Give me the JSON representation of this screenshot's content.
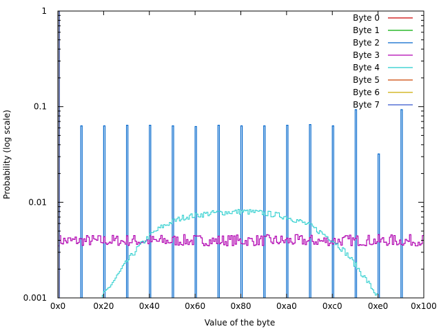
{
  "chart_data": {
    "type": "line",
    "title": "",
    "xlabel": "Value of the byte",
    "ylabel": "Probability (log scale)",
    "xlim": [
      0,
      256
    ],
    "ylim": [
      0.001,
      1
    ],
    "y_scale": "log",
    "grid": false,
    "legend_position": "top-right",
    "x_ticks": [
      {
        "value": 0,
        "label": "0x0"
      },
      {
        "value": 32,
        "label": "0x20"
      },
      {
        "value": 64,
        "label": "0x40"
      },
      {
        "value": 96,
        "label": "0x60"
      },
      {
        "value": 128,
        "label": "0x80"
      },
      {
        "value": 160,
        "label": "0xa0"
      },
      {
        "value": 192,
        "label": "0xc0"
      },
      {
        "value": 224,
        "label": "0xe0"
      },
      {
        "value": 256,
        "label": "0x100"
      }
    ],
    "y_ticks": [
      {
        "value": 0.001,
        "label": "0.001"
      },
      {
        "value": 0.01,
        "label": "0.01"
      },
      {
        "value": 0.1,
        "label": "0.1"
      },
      {
        "value": 1,
        "label": "1"
      }
    ],
    "series": [
      {
        "name": "Byte 0",
        "color": "#cc0000",
        "kind": "spikes",
        "points": [
          [
            0,
            1
          ]
        ]
      },
      {
        "name": "Byte 1",
        "color": "#00aa00",
        "kind": "spikes",
        "points": [
          [
            0,
            1
          ]
        ]
      },
      {
        "name": "Byte 2",
        "color": "#0066cc",
        "kind": "spikes",
        "points": [
          [
            0,
            1
          ],
          [
            16,
            0.063
          ],
          [
            32,
            0.063
          ],
          [
            48,
            0.064
          ],
          [
            64,
            0.064
          ],
          [
            80,
            0.063
          ],
          [
            96,
            0.062
          ],
          [
            112,
            0.064
          ],
          [
            128,
            0.063
          ],
          [
            144,
            0.063
          ],
          [
            160,
            0.064
          ],
          [
            176,
            0.065
          ],
          [
            192,
            0.063
          ],
          [
            208,
            0.093
          ],
          [
            224,
            0.032
          ],
          [
            240,
            0.093
          ]
        ]
      },
      {
        "name": "Byte 3",
        "color": "#b000b0",
        "kind": "band",
        "center": 0.0039,
        "low": 0.0035,
        "high": 0.0046
      },
      {
        "name": "Byte 4",
        "color": "#22cccc",
        "kind": "curve",
        "points": [
          [
            28,
            0.0008
          ],
          [
            32,
            0.0011
          ],
          [
            40,
            0.0016
          ],
          [
            48,
            0.0024
          ],
          [
            56,
            0.0034
          ],
          [
            64,
            0.0045
          ],
          [
            72,
            0.0055
          ],
          [
            80,
            0.0063
          ],
          [
            88,
            0.007
          ],
          [
            96,
            0.0073
          ],
          [
            104,
            0.0076
          ],
          [
            112,
            0.0078
          ],
          [
            120,
            0.0079
          ],
          [
            128,
            0.008
          ],
          [
            136,
            0.0079
          ],
          [
            144,
            0.0077
          ],
          [
            152,
            0.0074
          ],
          [
            160,
            0.007
          ],
          [
            168,
            0.0064
          ],
          [
            176,
            0.0057
          ],
          [
            184,
            0.0048
          ],
          [
            192,
            0.004
          ],
          [
            200,
            0.0031
          ],
          [
            208,
            0.0022
          ],
          [
            216,
            0.0015
          ],
          [
            224,
            0.001
          ]
        ]
      },
      {
        "name": "Byte 5",
        "color": "#cc4400",
        "kind": "spikes",
        "points": [
          [
            0,
            1
          ]
        ]
      },
      {
        "name": "Byte 6",
        "color": "#ccaa00",
        "kind": "spikes",
        "points": [
          [
            0,
            1
          ]
        ]
      },
      {
        "name": "Byte 7",
        "color": "#3355cc",
        "kind": "spikes",
        "points": [
          [
            0,
            1
          ]
        ]
      }
    ]
  }
}
